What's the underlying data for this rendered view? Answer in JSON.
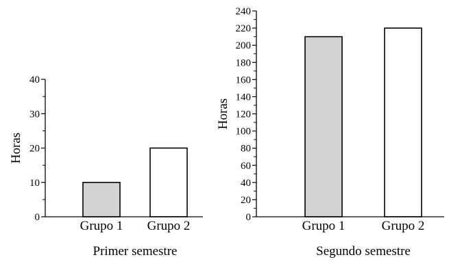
{
  "chart_data": [
    {
      "type": "bar",
      "categories": [
        "Grupo 1",
        "Grupo 2"
      ],
      "values": [
        10,
        20
      ],
      "ylabel": "Horas",
      "xlabel": "Primer semestre",
      "ylim": [
        0,
        40
      ],
      "yticks": [
        0,
        10,
        20,
        30,
        40
      ],
      "minor_tick_step": 5,
      "bar_colors": [
        "#d3d3d3",
        "#ffffff"
      ],
      "grid": false
    },
    {
      "type": "bar",
      "categories": [
        "Grupo 1",
        "Grupo 2"
      ],
      "values": [
        210,
        220
      ],
      "ylabel": "Horas",
      "xlabel": "Segundo semestre",
      "ylim": [
        0,
        240
      ],
      "yticks": [
        0,
        20,
        40,
        60,
        80,
        100,
        120,
        140,
        160,
        180,
        200,
        220,
        240
      ],
      "minor_tick_step": 10,
      "bar_colors": [
        "#d3d3d3",
        "#ffffff"
      ],
      "grid": false
    }
  ]
}
